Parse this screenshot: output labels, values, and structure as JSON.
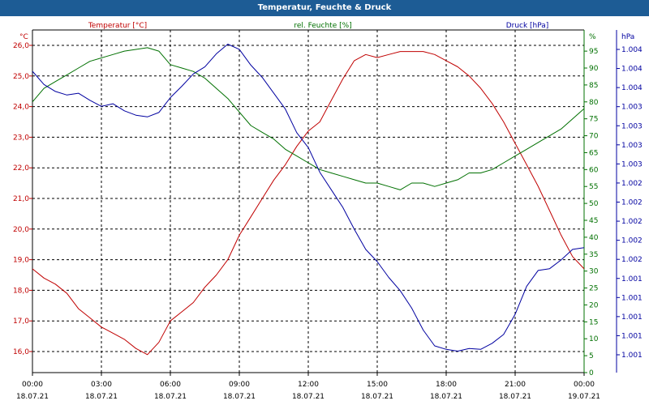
{
  "window": {
    "title": "Temperatur, Feuchte & Druck"
  },
  "colors": {
    "temperature": "#c00000",
    "humidity": "#007000",
    "pressure": "#0000a0",
    "titlebar": "#1d5c95"
  },
  "chart_data": {
    "type": "line",
    "title": "Temperatur, Feuchte & Druck",
    "grid": true,
    "x_ticks": [
      {
        "time": "00:00",
        "date": "18.07.21"
      },
      {
        "time": "03:00",
        "date": "18.07.21"
      },
      {
        "time": "06:00",
        "date": "18.07.21"
      },
      {
        "time": "09:00",
        "date": "18.07.21"
      },
      {
        "time": "12:00",
        "date": "18.07.21"
      },
      {
        "time": "15:00",
        "date": "18.07.21"
      },
      {
        "time": "18:00",
        "date": "18.07.21"
      },
      {
        "time": "21:00",
        "date": "18.07.21"
      },
      {
        "time": "00:00",
        "date": "19.07.21"
      }
    ],
    "x_range_hours": [
      0,
      24
    ],
    "axes": {
      "temperature": {
        "label": "Temperatur [°C]",
        "unit": "°C",
        "range": [
          15.6,
          26.3
        ],
        "ticks": [
          "16,0",
          "17,0",
          "18,0",
          "19,0",
          "20,0",
          "21,0",
          "22,0",
          "23,0",
          "24,0",
          "25,0",
          "26,0"
        ]
      },
      "humidity": {
        "label": "rel. Feuchte [%]",
        "unit": "%",
        "range": [
          0,
          100
        ],
        "ticks": [
          "0",
          "5",
          "10",
          "15",
          "20",
          "25",
          "30",
          "35",
          "40",
          "45",
          "50",
          "55",
          "60",
          "65",
          "70",
          "75",
          "80",
          "85",
          "90",
          "95",
          "%"
        ]
      },
      "pressure": {
        "label": "Druck [hPa]",
        "unit": "hPa",
        "ticks": [
          "1.001",
          "1.001",
          "1.001",
          "1.001",
          "1.001",
          "1.002",
          "1.002",
          "1.002",
          "1.002",
          "1.002",
          "1.003",
          "1.003",
          "1.003",
          "1.003",
          "1.004",
          "1.004",
          "1.004"
        ]
      }
    },
    "series": [
      {
        "name": "Temperatur [°C]",
        "axis": "temperature",
        "color": "#c00000",
        "x": [
          0,
          0.5,
          1,
          1.5,
          2,
          2.5,
          3,
          3.5,
          4,
          4.5,
          5,
          5.5,
          6,
          6.5,
          7,
          7.5,
          8,
          8.5,
          9,
          9.5,
          10,
          10.5,
          11,
          11.5,
          12,
          12.5,
          13,
          13.5,
          14,
          14.5,
          15,
          15.5,
          16,
          16.5,
          17,
          17.5,
          18,
          18.5,
          19,
          19.5,
          20,
          20.5,
          21,
          21.5,
          22,
          22.5,
          23,
          23.5,
          24
        ],
        "values": [
          18.7,
          18.4,
          18.2,
          17.9,
          17.4,
          17.1,
          16.8,
          16.6,
          16.4,
          16.1,
          15.9,
          16.3,
          17.0,
          17.3,
          17.6,
          18.1,
          18.5,
          19.0,
          19.8,
          20.4,
          21.0,
          21.6,
          22.1,
          22.7,
          23.2,
          23.5,
          24.2,
          24.9,
          25.5,
          25.7,
          25.6,
          25.7,
          25.8,
          25.8,
          25.8,
          25.7,
          25.5,
          25.3,
          25.0,
          24.6,
          24.1,
          23.5,
          22.8,
          22.1,
          21.4,
          20.6,
          19.8,
          19.1,
          18.7
        ]
      },
      {
        "name": "rel. Feuchte [%]",
        "axis": "humidity",
        "color": "#007000",
        "x": [
          0,
          0.5,
          1,
          1.5,
          2,
          2.5,
          3,
          3.5,
          4,
          4.5,
          5,
          5.5,
          6,
          6.5,
          7,
          7.5,
          8,
          8.5,
          9,
          9.5,
          10,
          10.5,
          11,
          11.5,
          12,
          12.5,
          13,
          13.5,
          14,
          14.5,
          15,
          15.5,
          16,
          16.5,
          17,
          17.5,
          18,
          18.5,
          19,
          19.5,
          20,
          20.5,
          21,
          21.5,
          22,
          22.5,
          23,
          23.5,
          24
        ],
        "values": [
          80,
          84,
          86,
          88,
          90,
          92,
          93,
          94,
          95,
          95.5,
          96,
          95,
          91,
          90,
          89,
          87,
          84,
          81,
          77,
          73,
          71,
          69,
          66,
          64,
          62,
          60,
          59,
          58,
          57,
          56,
          56,
          55,
          54,
          56,
          56,
          55,
          56,
          57,
          59,
          59,
          60,
          62,
          64,
          66,
          68,
          70,
          72,
          75,
          78
        ]
      },
      {
        "name": "Druck [hPa]",
        "axis": "pressure",
        "color": "#0000a0",
        "x": [
          0,
          0.5,
          1,
          1.5,
          2,
          2.5,
          3,
          3.5,
          4,
          4.5,
          5,
          5.5,
          6,
          6.5,
          7,
          7.5,
          8,
          8.5,
          9,
          9.5,
          10,
          10.5,
          11,
          11.5,
          12,
          12.5,
          13,
          13.5,
          14,
          14.5,
          15,
          15.5,
          16,
          16.5,
          17,
          17.5,
          18,
          18.5,
          19,
          19.5,
          20,
          20.5,
          21,
          21.5,
          22,
          22.5,
          23,
          23.5,
          24
        ],
        "values": [
          1003.55,
          1003.4,
          1003.32,
          1003.28,
          1003.3,
          1003.22,
          1003.15,
          1003.18,
          1003.1,
          1003.05,
          1003.03,
          1003.08,
          1003.25,
          1003.38,
          1003.52,
          1003.6,
          1003.75,
          1003.86,
          1003.8,
          1003.62,
          1003.48,
          1003.3,
          1003.12,
          1002.85,
          1002.68,
          1002.4,
          1002.2,
          1002.0,
          1001.75,
          1001.52,
          1001.38,
          1001.2,
          1001.05,
          1000.85,
          1000.6,
          1000.42,
          1000.38,
          1000.36,
          1000.39,
          1000.38,
          1000.45,
          1000.55,
          1000.78,
          1001.1,
          1001.28,
          1001.3,
          1001.4,
          1001.52,
          1001.54
        ]
      }
    ]
  }
}
